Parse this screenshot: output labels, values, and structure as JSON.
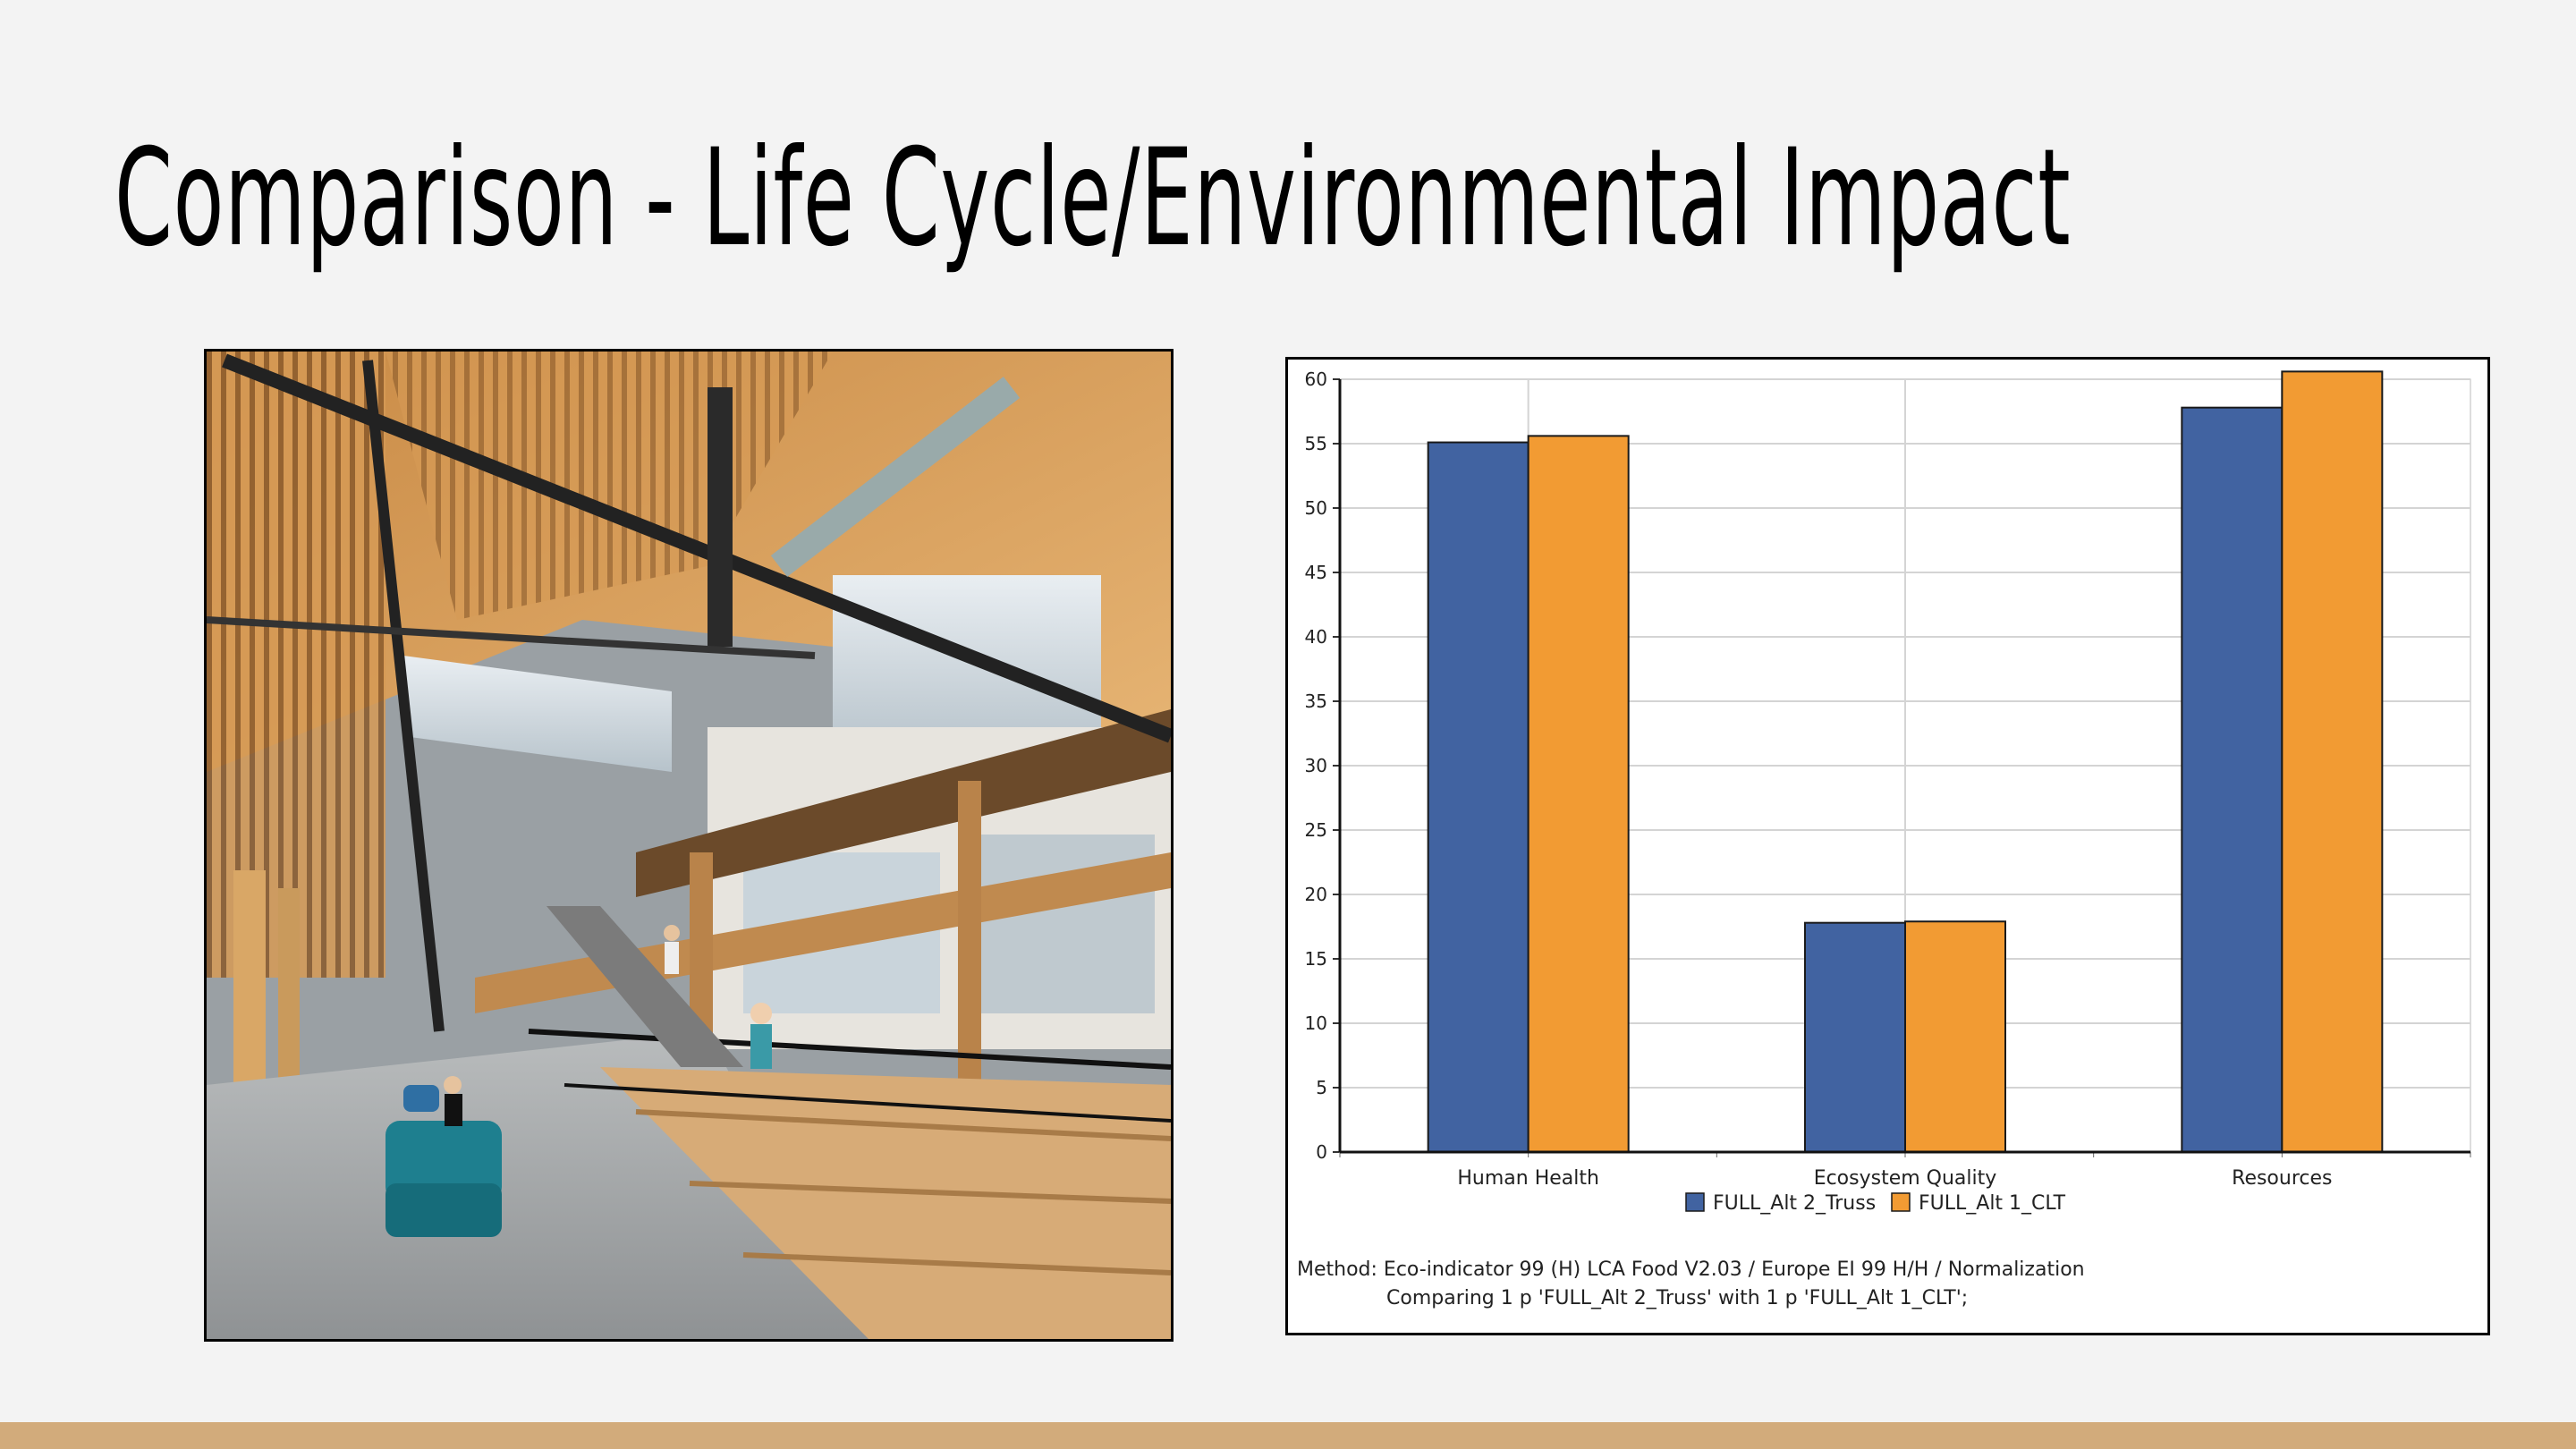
{
  "slide": {
    "title": "Comparison - Life Cycle/Environmental Impact"
  },
  "photo": {
    "subject": "timber atrium interior"
  },
  "chart_data": {
    "type": "bar",
    "categories": [
      "Human Health",
      "Ecosystem Quality",
      "Resources"
    ],
    "series": [
      {
        "name": "FULL_Alt 2_Truss",
        "values": [
          55.1,
          17.8,
          57.8
        ],
        "color": "#4163a1"
      },
      {
        "name": "FULL_Alt 1_CLT",
        "values": [
          55.6,
          17.9,
          60.6
        ],
        "color": "#f29b33"
      }
    ],
    "ylim": [
      0,
      60
    ],
    "yticks": [
      0,
      5,
      10,
      15,
      20,
      25,
      30,
      35,
      40,
      45,
      50,
      55,
      60
    ],
    "grid": true,
    "legend_position": "bottom",
    "footnote_line1": "Method: Eco-indicator 99 (H) LCA Food V2.03 / Europe EI 99 H/H / Normalization",
    "footnote_line2": "Comparing 1 p 'FULL_Alt 2_Truss' with 1 p 'FULL_Alt 1_CLT';"
  },
  "colors": {
    "background": "#f3f3f3",
    "accent_bar": "#d2ab7b"
  }
}
